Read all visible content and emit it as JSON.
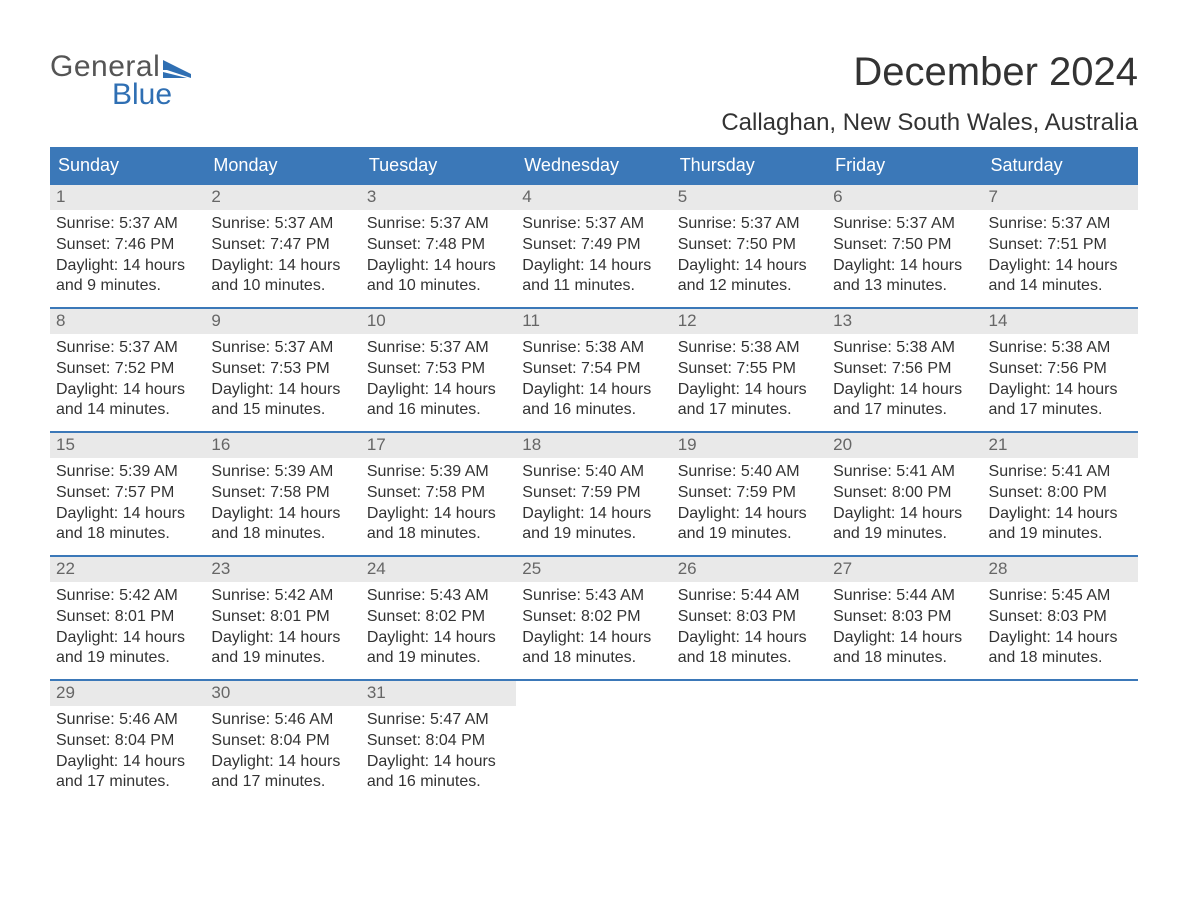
{
  "logo": {
    "line1": "General",
    "line2": "Blue",
    "flag_color": "#2f6fb3",
    "text_gray": "#555555"
  },
  "title": "December 2024",
  "location": "Callaghan, New South Wales, Australia",
  "colors": {
    "header_bg": "#3b78b8",
    "header_text": "#ffffff",
    "daynum_bg": "#e9e9e9",
    "daynum_text": "#666666",
    "body_text": "#333333",
    "rule": "#3b78b8",
    "page_bg": "#ffffff"
  },
  "typography": {
    "title_fontsize": 40,
    "location_fontsize": 24,
    "header_fontsize": 18,
    "body_fontsize": 16
  },
  "weekdays": [
    "Sunday",
    "Monday",
    "Tuesday",
    "Wednesday",
    "Thursday",
    "Friday",
    "Saturday"
  ],
  "weeks": [
    [
      {
        "day": "1",
        "sunrise": "5:37 AM",
        "sunset": "7:46 PM",
        "dl_hours": "14",
        "dl_minutes": "9"
      },
      {
        "day": "2",
        "sunrise": "5:37 AM",
        "sunset": "7:47 PM",
        "dl_hours": "14",
        "dl_minutes": "10"
      },
      {
        "day": "3",
        "sunrise": "5:37 AM",
        "sunset": "7:48 PM",
        "dl_hours": "14",
        "dl_minutes": "10"
      },
      {
        "day": "4",
        "sunrise": "5:37 AM",
        "sunset": "7:49 PM",
        "dl_hours": "14",
        "dl_minutes": "11"
      },
      {
        "day": "5",
        "sunrise": "5:37 AM",
        "sunset": "7:50 PM",
        "dl_hours": "14",
        "dl_minutes": "12"
      },
      {
        "day": "6",
        "sunrise": "5:37 AM",
        "sunset": "7:50 PM",
        "dl_hours": "14",
        "dl_minutes": "13"
      },
      {
        "day": "7",
        "sunrise": "5:37 AM",
        "sunset": "7:51 PM",
        "dl_hours": "14",
        "dl_minutes": "14"
      }
    ],
    [
      {
        "day": "8",
        "sunrise": "5:37 AM",
        "sunset": "7:52 PM",
        "dl_hours": "14",
        "dl_minutes": "14"
      },
      {
        "day": "9",
        "sunrise": "5:37 AM",
        "sunset": "7:53 PM",
        "dl_hours": "14",
        "dl_minutes": "15"
      },
      {
        "day": "10",
        "sunrise": "5:37 AM",
        "sunset": "7:53 PM",
        "dl_hours": "14",
        "dl_minutes": "16"
      },
      {
        "day": "11",
        "sunrise": "5:38 AM",
        "sunset": "7:54 PM",
        "dl_hours": "14",
        "dl_minutes": "16"
      },
      {
        "day": "12",
        "sunrise": "5:38 AM",
        "sunset": "7:55 PM",
        "dl_hours": "14",
        "dl_minutes": "17"
      },
      {
        "day": "13",
        "sunrise": "5:38 AM",
        "sunset": "7:56 PM",
        "dl_hours": "14",
        "dl_minutes": "17"
      },
      {
        "day": "14",
        "sunrise": "5:38 AM",
        "sunset": "7:56 PM",
        "dl_hours": "14",
        "dl_minutes": "17"
      }
    ],
    [
      {
        "day": "15",
        "sunrise": "5:39 AM",
        "sunset": "7:57 PM",
        "dl_hours": "14",
        "dl_minutes": "18"
      },
      {
        "day": "16",
        "sunrise": "5:39 AM",
        "sunset": "7:58 PM",
        "dl_hours": "14",
        "dl_minutes": "18"
      },
      {
        "day": "17",
        "sunrise": "5:39 AM",
        "sunset": "7:58 PM",
        "dl_hours": "14",
        "dl_minutes": "18"
      },
      {
        "day": "18",
        "sunrise": "5:40 AM",
        "sunset": "7:59 PM",
        "dl_hours": "14",
        "dl_minutes": "19"
      },
      {
        "day": "19",
        "sunrise": "5:40 AM",
        "sunset": "7:59 PM",
        "dl_hours": "14",
        "dl_minutes": "19"
      },
      {
        "day": "20",
        "sunrise": "5:41 AM",
        "sunset": "8:00 PM",
        "dl_hours": "14",
        "dl_minutes": "19"
      },
      {
        "day": "21",
        "sunrise": "5:41 AM",
        "sunset": "8:00 PM",
        "dl_hours": "14",
        "dl_minutes": "19"
      }
    ],
    [
      {
        "day": "22",
        "sunrise": "5:42 AM",
        "sunset": "8:01 PM",
        "dl_hours": "14",
        "dl_minutes": "19"
      },
      {
        "day": "23",
        "sunrise": "5:42 AM",
        "sunset": "8:01 PM",
        "dl_hours": "14",
        "dl_minutes": "19"
      },
      {
        "day": "24",
        "sunrise": "5:43 AM",
        "sunset": "8:02 PM",
        "dl_hours": "14",
        "dl_minutes": "19"
      },
      {
        "day": "25",
        "sunrise": "5:43 AM",
        "sunset": "8:02 PM",
        "dl_hours": "14",
        "dl_minutes": "18"
      },
      {
        "day": "26",
        "sunrise": "5:44 AM",
        "sunset": "8:03 PM",
        "dl_hours": "14",
        "dl_minutes": "18"
      },
      {
        "day": "27",
        "sunrise": "5:44 AM",
        "sunset": "8:03 PM",
        "dl_hours": "14",
        "dl_minutes": "18"
      },
      {
        "day": "28",
        "sunrise": "5:45 AM",
        "sunset": "8:03 PM",
        "dl_hours": "14",
        "dl_minutes": "18"
      }
    ],
    [
      {
        "day": "29",
        "sunrise": "5:46 AM",
        "sunset": "8:04 PM",
        "dl_hours": "14",
        "dl_minutes": "17"
      },
      {
        "day": "30",
        "sunrise": "5:46 AM",
        "sunset": "8:04 PM",
        "dl_hours": "14",
        "dl_minutes": "17"
      },
      {
        "day": "31",
        "sunrise": "5:47 AM",
        "sunset": "8:04 PM",
        "dl_hours": "14",
        "dl_minutes": "16"
      },
      null,
      null,
      null,
      null
    ]
  ],
  "labels": {
    "sunrise_prefix": "Sunrise: ",
    "sunset_prefix": "Sunset: ",
    "daylight_prefix": "Daylight: ",
    "hours_word": " hours",
    "and_word": "and ",
    "minutes_word": " minutes."
  }
}
